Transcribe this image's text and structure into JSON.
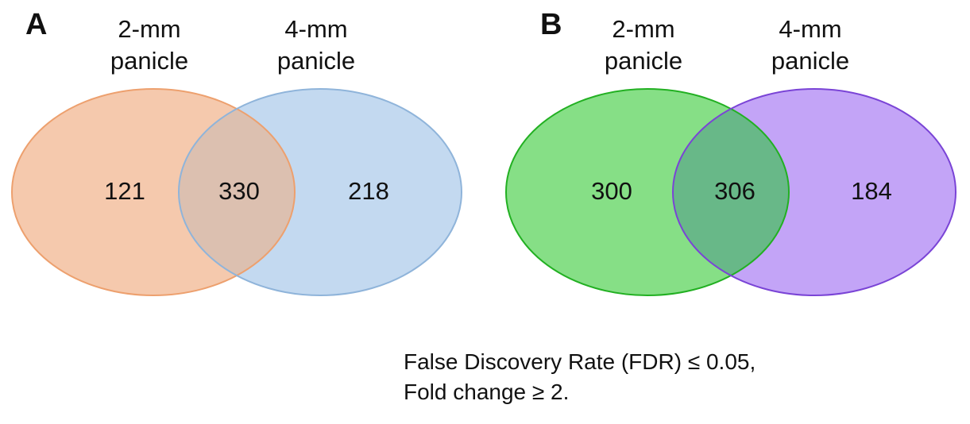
{
  "panels": [
    {
      "letter": "A",
      "left_set": {
        "label_line1": "2-mm",
        "label_line2": "panicle",
        "only_count": "121",
        "color": "#f5c9ad",
        "stroke": "#eda06e"
      },
      "right_set": {
        "label_line1": "4-mm",
        "label_line2": "panicle",
        "only_count": "218",
        "color": "#c3d9f0",
        "stroke": "#8fb4da"
      },
      "overlap_count": "330"
    },
    {
      "letter": "B",
      "left_set": {
        "label_line1": "2-mm",
        "label_line2": "panicle",
        "only_count": "300",
        "color": "#86df86",
        "stroke": "#22b022"
      },
      "right_set": {
        "label_line1": "4-mm",
        "label_line2": "panicle",
        "only_count": "184",
        "color": "#c3a4f7",
        "stroke": "#7a44d6"
      },
      "overlap_count": "306"
    }
  ],
  "note": {
    "line1": "False Discovery Rate (FDR) ≤ 0.05,",
    "line2": "Fold change ≥ 2."
  }
}
